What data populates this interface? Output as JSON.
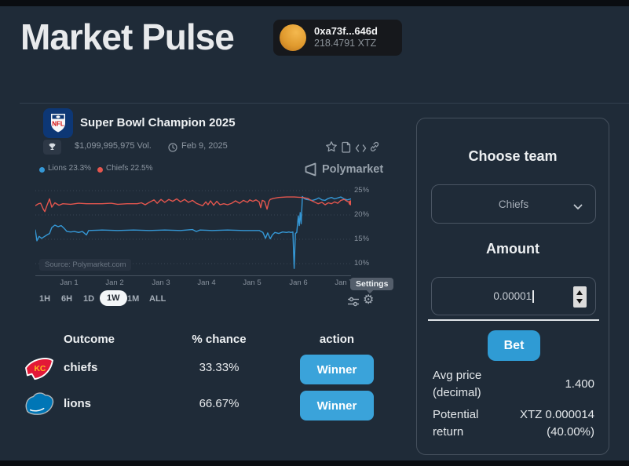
{
  "header": {
    "title": "Market Pulse",
    "wallet": {
      "address": "0xa73f...646d",
      "balance": "218.4791 XTZ"
    }
  },
  "market": {
    "title": "Super Bowl Champion 2025",
    "volume": "$1,099,995,975 Vol.",
    "end_date": "Feb 9, 2025",
    "brand": "Polymarket",
    "settings_tooltip": "Settings"
  },
  "icons": {
    "gear": "⚙"
  },
  "chart_data": {
    "type": "line",
    "x_labels": [
      "Jan 1",
      "Jan 2",
      "Jan 3",
      "Jan 4",
      "Jan 5",
      "Jan 6",
      "Jan 7"
    ],
    "y_ticks": [
      {
        "label": "25%",
        "value": 25
      },
      {
        "label": "20%",
        "value": 20
      },
      {
        "label": "15%",
        "value": 15
      },
      {
        "label": "10%",
        "value": 10
      }
    ],
    "ylim": [
      8,
      26
    ],
    "grid": "dotted-horizontal",
    "legend_position": "top-left",
    "source_note": "Source: Polymarket.com",
    "series": [
      {
        "name": "Lions",
        "color": "#3598d6",
        "legend_label": "Lions 23.3%",
        "points": [
          [
            0.0,
            16.9
          ],
          [
            0.005,
            14.7
          ],
          [
            0.012,
            15.6
          ],
          [
            0.02,
            15.2
          ],
          [
            0.027,
            15.5
          ],
          [
            0.037,
            15.9
          ],
          [
            0.045,
            16.2
          ],
          [
            0.052,
            17.4
          ],
          [
            0.062,
            17.9
          ],
          [
            0.072,
            17.6
          ],
          [
            0.082,
            17.8
          ],
          [
            0.092,
            17.2
          ],
          [
            0.1,
            16.6
          ],
          [
            0.112,
            16.5
          ],
          [
            0.124,
            16.6
          ],
          [
            0.137,
            16.4
          ],
          [
            0.149,
            16.6
          ],
          [
            0.162,
            15.9
          ],
          [
            0.169,
            16.8
          ],
          [
            0.211,
            16.9
          ],
          [
            0.261,
            16.8
          ],
          [
            0.311,
            16.9
          ],
          [
            0.361,
            16.8
          ],
          [
            0.41,
            16.9
          ],
          [
            0.46,
            16.8
          ],
          [
            0.498,
            17.0
          ],
          [
            0.51,
            16.6
          ],
          [
            0.522,
            16.9
          ],
          [
            0.56,
            16.8
          ],
          [
            0.609,
            16.9
          ],
          [
            0.659,
            16.8
          ],
          [
            0.709,
            16.8
          ],
          [
            0.721,
            16.4
          ],
          [
            0.729,
            15.2
          ],
          [
            0.736,
            16.3
          ],
          [
            0.744,
            15.1
          ],
          [
            0.751,
            15.9
          ],
          [
            0.759,
            16.4
          ],
          [
            0.771,
            16.2
          ],
          [
            0.783,
            16.5
          ],
          [
            0.796,
            16.4
          ],
          [
            0.803,
            16.5
          ],
          [
            0.81,
            16.4
          ],
          [
            0.816,
            16.5
          ],
          [
            0.82,
            9.0
          ],
          [
            0.824,
            16.2
          ],
          [
            0.828,
            16.4
          ],
          [
            0.833,
            19.8
          ],
          [
            0.836,
            17.8
          ],
          [
            0.839,
            20.5
          ],
          [
            0.842,
            18.2
          ],
          [
            0.846,
            23.8
          ],
          [
            0.851,
            23.4
          ],
          [
            0.858,
            23.2
          ],
          [
            0.868,
            23.1
          ],
          [
            0.878,
            23.0
          ],
          [
            0.888,
            23.2
          ],
          [
            0.898,
            23.5
          ],
          [
            0.908,
            23.1
          ],
          [
            0.918,
            23.0
          ],
          [
            0.928,
            23.4
          ],
          [
            0.938,
            23.6
          ],
          [
            0.948,
            23.3
          ],
          [
            0.958,
            23.5
          ],
          [
            0.968,
            23.7
          ],
          [
            0.978,
            23.3
          ],
          [
            0.988,
            23.1
          ],
          [
            1.0,
            23.3
          ]
        ]
      },
      {
        "name": "Chiefs",
        "color": "#e4564e",
        "legend_label": "Chiefs 22.5%",
        "points": [
          [
            0.0,
            21.9
          ],
          [
            0.01,
            22.3
          ],
          [
            0.017,
            22.4
          ],
          [
            0.025,
            21.2
          ],
          [
            0.03,
            20.7
          ],
          [
            0.037,
            22.0
          ],
          [
            0.045,
            23.3
          ],
          [
            0.052,
            21.6
          ],
          [
            0.062,
            22.5
          ],
          [
            0.075,
            22.0
          ],
          [
            0.087,
            22.3
          ],
          [
            0.112,
            22.2
          ],
          [
            0.137,
            22.4
          ],
          [
            0.162,
            22.3
          ],
          [
            0.211,
            22.3
          ],
          [
            0.24,
            22.4
          ],
          [
            0.261,
            22.2
          ],
          [
            0.29,
            22.3
          ],
          [
            0.323,
            22.3
          ],
          [
            0.336,
            22.5
          ],
          [
            0.348,
            22.1
          ],
          [
            0.361,
            22.6
          ],
          [
            0.376,
            23.1
          ],
          [
            0.386,
            22.4
          ],
          [
            0.398,
            23.2
          ],
          [
            0.41,
            22.6
          ],
          [
            0.423,
            23.2
          ],
          [
            0.435,
            22.8
          ],
          [
            0.448,
            23.3
          ],
          [
            0.46,
            22.7
          ],
          [
            0.473,
            23.2
          ],
          [
            0.485,
            22.6
          ],
          [
            0.498,
            23.0
          ],
          [
            0.51,
            22.4
          ],
          [
            0.522,
            22.1
          ],
          [
            0.53,
            21.9
          ],
          [
            0.54,
            22.7
          ],
          [
            0.547,
            22.1
          ],
          [
            0.555,
            22.9
          ],
          [
            0.565,
            22.0
          ],
          [
            0.575,
            22.8
          ],
          [
            0.585,
            22.1
          ],
          [
            0.597,
            22.3
          ],
          [
            0.609,
            22.1
          ],
          [
            0.622,
            22.4
          ],
          [
            0.634,
            22.9
          ],
          [
            0.647,
            22.4
          ],
          [
            0.659,
            23.0
          ],
          [
            0.672,
            22.6
          ],
          [
            0.679,
            23.1
          ],
          [
            0.689,
            22.8
          ],
          [
            0.699,
            23.1
          ],
          [
            0.709,
            22.7
          ],
          [
            0.714,
            21.5
          ],
          [
            0.719,
            23.0
          ],
          [
            0.726,
            22.8
          ],
          [
            0.734,
            21.2
          ],
          [
            0.74,
            22.8
          ],
          [
            0.744,
            23.2
          ],
          [
            0.754,
            23.4
          ],
          [
            0.771,
            23.6
          ],
          [
            0.796,
            23.7
          ],
          [
            0.821,
            23.7
          ],
          [
            0.846,
            23.6
          ],
          [
            0.863,
            23.4
          ],
          [
            0.873,
            23.0
          ],
          [
            0.883,
            22.7
          ],
          [
            0.896,
            22.3
          ],
          [
            0.908,
            22.6
          ],
          [
            0.918,
            22.1
          ],
          [
            0.928,
            22.5
          ],
          [
            0.938,
            22.3
          ],
          [
            0.948,
            22.7
          ],
          [
            0.958,
            22.4
          ],
          [
            0.968,
            23.0
          ],
          [
            0.978,
            23.2
          ],
          [
            0.988,
            22.8
          ],
          [
            1.0,
            22.5
          ]
        ]
      }
    ],
    "end_marker": {
      "series": "Chiefs",
      "x": 1.0,
      "y": 22.5
    }
  },
  "timeframes": {
    "options": [
      "1H",
      "6H",
      "1D",
      "1W",
      "1M",
      "ALL"
    ],
    "selected": "1W"
  },
  "outcomes": {
    "headers": {
      "outcome": "Outcome",
      "chance": "% chance",
      "action": "action"
    },
    "rows": [
      {
        "team": "chiefs",
        "chance": "33.33%",
        "action": "Winner"
      },
      {
        "team": "lions",
        "chance": "66.67%",
        "action": "Winner"
      }
    ]
  },
  "bet_panel": {
    "choose_team_label": "Choose team",
    "selected_team": "Chiefs",
    "amount_label": "Amount",
    "amount_value": "0.00001",
    "bet_button": "Bet",
    "avg_price_label": "Avg price (decimal)",
    "avg_price_value": "1.400",
    "potential_return_label": "Potential return",
    "potential_return_value": "XTZ 0.000014 (40.00%)"
  }
}
